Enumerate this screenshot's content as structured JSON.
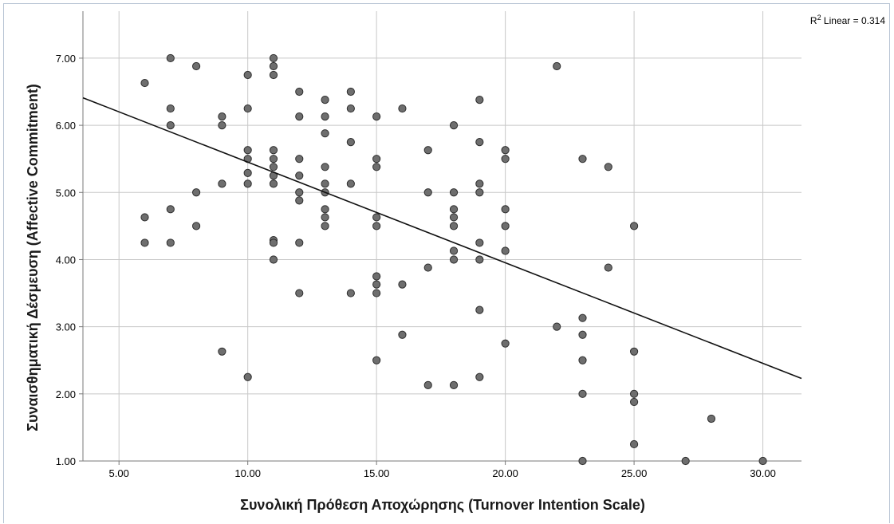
{
  "chart_data": {
    "type": "scatter",
    "xlabel": "Συνολική Πρόθεση Αποχώρησης (Turnover Intention Scale)",
    "ylabel": "Συναισθηματική Δέσμευση (Affective Commitment)",
    "xlim": [
      3.6,
      31.5
    ],
    "ylim": [
      1.0,
      7.7
    ],
    "x_ticks": [
      "5.00",
      "10.00",
      "15.00",
      "20.00",
      "25.00",
      "30.00"
    ],
    "x_tick_values": [
      5,
      10,
      15,
      20,
      25,
      30
    ],
    "y_ticks": [
      "1.00",
      "2.00",
      "3.00",
      "4.00",
      "5.00",
      "6.00",
      "7.00"
    ],
    "y_tick_values": [
      1,
      2,
      3,
      4,
      5,
      6,
      7
    ],
    "grid": true,
    "fit_line": {
      "label_prefix": "R",
      "label_sup": "2",
      "label_suffix": " Linear = 0.314",
      "r2": 0.314,
      "x": [
        3.6,
        31.5
      ],
      "y": [
        6.41,
        2.23
      ]
    },
    "marker_color": "#6e6e6e",
    "line_color": "#111111",
    "points": [
      [
        6,
        6.63
      ],
      [
        6,
        4.63
      ],
      [
        6,
        4.25
      ],
      [
        7,
        7.0
      ],
      [
        7,
        6.25
      ],
      [
        7,
        6.0
      ],
      [
        7,
        4.75
      ],
      [
        7,
        4.25
      ],
      [
        8,
        6.88
      ],
      [
        8,
        5.0
      ],
      [
        8,
        4.5
      ],
      [
        9,
        6.13
      ],
      [
        9,
        6.0
      ],
      [
        9,
        5.13
      ],
      [
        9,
        2.63
      ],
      [
        10,
        6.75
      ],
      [
        10,
        6.25
      ],
      [
        10,
        5.63
      ],
      [
        10,
        5.5
      ],
      [
        10,
        5.29
      ],
      [
        10,
        5.13
      ],
      [
        10,
        2.25
      ],
      [
        11,
        7.0
      ],
      [
        11,
        6.88
      ],
      [
        11,
        6.75
      ],
      [
        11,
        5.63
      ],
      [
        11,
        5.5
      ],
      [
        11,
        5.38
      ],
      [
        11,
        5.25
      ],
      [
        11,
        5.13
      ],
      [
        11,
        4.29
      ],
      [
        11,
        4.25
      ],
      [
        11,
        4.0
      ],
      [
        12,
        6.5
      ],
      [
        12,
        6.13
      ],
      [
        12,
        5.5
      ],
      [
        12,
        5.25
      ],
      [
        12,
        5.0
      ],
      [
        12,
        4.88
      ],
      [
        12,
        4.25
      ],
      [
        12,
        3.5
      ],
      [
        13,
        6.38
      ],
      [
        13,
        6.13
      ],
      [
        13,
        5.88
      ],
      [
        13,
        5.38
      ],
      [
        13,
        5.13
      ],
      [
        13,
        5.0
      ],
      [
        13,
        4.75
      ],
      [
        13,
        4.63
      ],
      [
        13,
        4.5
      ],
      [
        14,
        6.5
      ],
      [
        14,
        6.25
      ],
      [
        14,
        5.75
      ],
      [
        14,
        5.13
      ],
      [
        14,
        3.5
      ],
      [
        15,
        6.13
      ],
      [
        15,
        5.5
      ],
      [
        15,
        5.38
      ],
      [
        15,
        4.63
      ],
      [
        15,
        4.5
      ],
      [
        15,
        3.75
      ],
      [
        15,
        3.63
      ],
      [
        15,
        3.5
      ],
      [
        15,
        2.5
      ],
      [
        16,
        6.25
      ],
      [
        16,
        3.63
      ],
      [
        16,
        2.88
      ],
      [
        17,
        5.63
      ],
      [
        17,
        5.0
      ],
      [
        17,
        3.88
      ],
      [
        17,
        2.13
      ],
      [
        18,
        6.0
      ],
      [
        18,
        5.0
      ],
      [
        18,
        4.75
      ],
      [
        18,
        4.63
      ],
      [
        18,
        4.5
      ],
      [
        18,
        4.13
      ],
      [
        18,
        4.0
      ],
      [
        18,
        2.13
      ],
      [
        19,
        6.38
      ],
      [
        19,
        5.75
      ],
      [
        19,
        5.13
      ],
      [
        19,
        5.0
      ],
      [
        19,
        4.25
      ],
      [
        19,
        4.0
      ],
      [
        19,
        3.25
      ],
      [
        19,
        2.25
      ],
      [
        20,
        5.63
      ],
      [
        20,
        5.5
      ],
      [
        20,
        4.75
      ],
      [
        20,
        4.5
      ],
      [
        20,
        4.13
      ],
      [
        20,
        2.75
      ],
      [
        22,
        6.88
      ],
      [
        22,
        3.0
      ],
      [
        23,
        5.5
      ],
      [
        23,
        3.13
      ],
      [
        23,
        2.88
      ],
      [
        23,
        2.5
      ],
      [
        23,
        2.0
      ],
      [
        23,
        1.0
      ],
      [
        24,
        5.38
      ],
      [
        24,
        3.88
      ],
      [
        25,
        4.5
      ],
      [
        25,
        2.63
      ],
      [
        25,
        2.0
      ],
      [
        25,
        1.88
      ],
      [
        25,
        1.25
      ],
      [
        27,
        1.0
      ],
      [
        28,
        1.63
      ],
      [
        30,
        1.0
      ]
    ]
  }
}
